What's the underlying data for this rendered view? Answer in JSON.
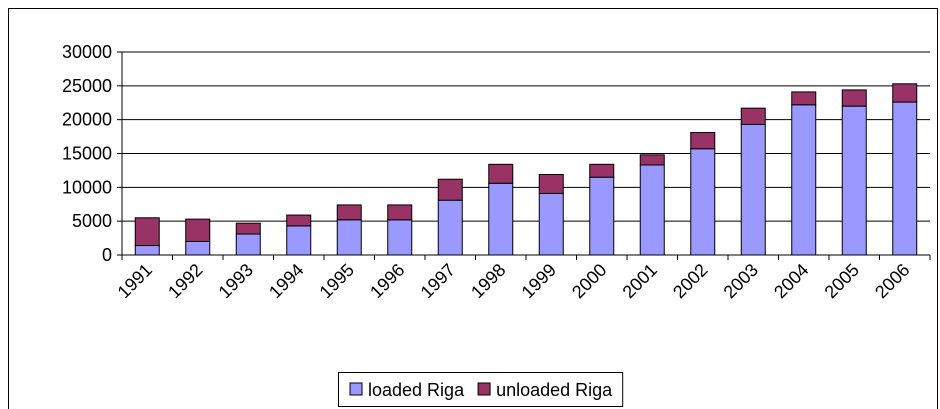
{
  "chart_data": {
    "type": "bar",
    "stacked": true,
    "categories": [
      "1991",
      "1992",
      "1993",
      "1994",
      "1995",
      "1996",
      "1997",
      "1998",
      "1999",
      "2000",
      "2001",
      "2002",
      "2003",
      "2004",
      "2005",
      "2006"
    ],
    "series": [
      {
        "name": "loaded Riga",
        "color": "#9999ff",
        "values": [
          1400,
          2000,
          3100,
          4300,
          5200,
          5200,
          8100,
          10600,
          9100,
          11500,
          13300,
          15700,
          19300,
          22200,
          22000,
          22600
        ]
      },
      {
        "name": "unloaded Riga",
        "color": "#993366",
        "values": [
          4100,
          3300,
          1600,
          1600,
          2200,
          2200,
          3100,
          2800,
          2800,
          1900,
          1500,
          2400,
          2400,
          1900,
          2400,
          2700
        ]
      }
    ],
    "ylim": [
      0,
      30000
    ],
    "yticks": [
      0,
      5000,
      10000,
      15000,
      20000,
      25000,
      30000
    ],
    "grid": true,
    "legend": "bottom"
  }
}
